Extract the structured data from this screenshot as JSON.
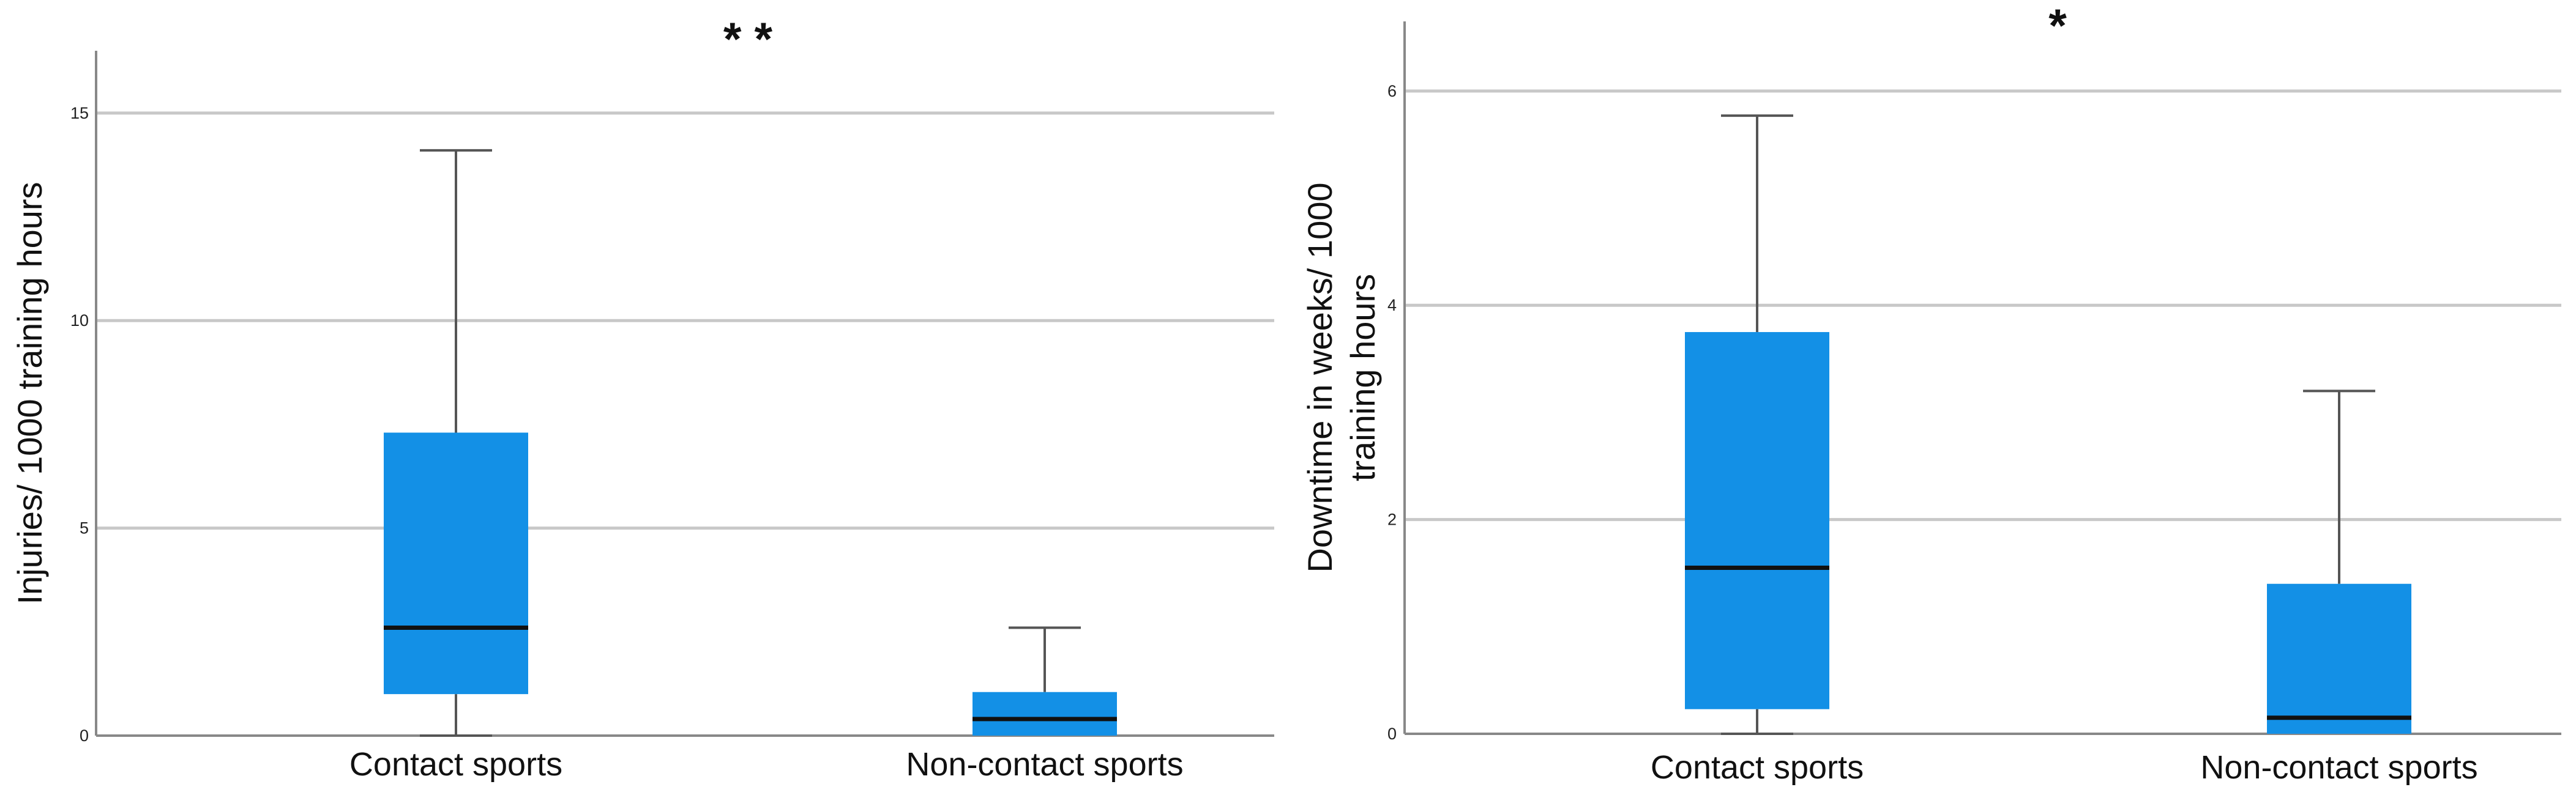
{
  "chart_data": [
    {
      "type": "box",
      "title": "",
      "xlabel": "",
      "ylabel": "Injuries/ 1000 training hours",
      "ylim": [
        0,
        16.5
      ],
      "yticks": [
        0,
        5,
        10,
        15
      ],
      "ytick_labels": [
        "0",
        "5",
        "10",
        "15"
      ],
      "grid": "horizontal",
      "significance": "* *",
      "categories": [
        "Contact sports",
        "Non-contact sports"
      ],
      "boxes": [
        {
          "category": "Contact sports",
          "min": 0,
          "q1": 1.0,
          "median": 2.6,
          "q3": 7.3,
          "max": 14.1
        },
        {
          "category": "Non-contact sports",
          "min": 0,
          "q1": 0,
          "median": 0.4,
          "q3": 1.05,
          "max": 2.6
        }
      ]
    },
    {
      "type": "box",
      "title": "",
      "xlabel": "",
      "ylabel": "Downtime in weeks/ 1000 training hours",
      "ylabel_lines": [
        "Downtime in weeks/ 1000",
        "training hours"
      ],
      "ylim": [
        0,
        6.65
      ],
      "yticks": [
        0,
        2,
        4,
        6
      ],
      "ytick_labels": [
        "0",
        "2",
        "4",
        "6"
      ],
      "grid": "horizontal",
      "significance": "*",
      "categories": [
        "Contact sports",
        "Non-contact sports"
      ],
      "boxes": [
        {
          "category": "Contact sports",
          "min": 0,
          "q1": 0.23,
          "median": 1.55,
          "q3": 3.75,
          "max": 5.77
        },
        {
          "category": "Non-contact sports",
          "min": 0,
          "q1": 0,
          "median": 0.15,
          "q3": 1.4,
          "max": 3.2
        }
      ]
    }
  ],
  "colors": {
    "box_fill": "#1390e6",
    "median_line": "#111111",
    "whisker": "#555555",
    "grid": "#c8c8c8",
    "axis": "#888888"
  }
}
